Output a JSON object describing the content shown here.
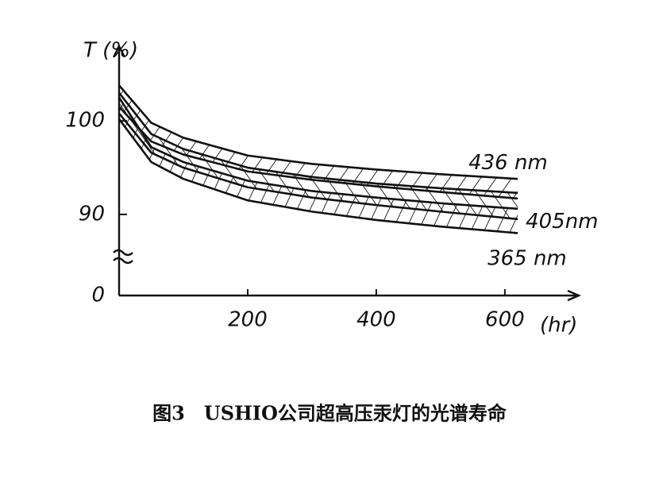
{
  "chart_data": {
    "type": "band",
    "y_label": "T (%)",
    "x_label": "(hr)",
    "caption": "图3　USHIO公司超高压汞灯的光谱寿命",
    "x": [
      0,
      50,
      100,
      200,
      300,
      400,
      500,
      620
    ],
    "xlim": [
      0,
      715
    ],
    "xticks": [
      200,
      400,
      600
    ],
    "ylim": [
      0,
      108
    ],
    "ybreak": [
      0,
      86
    ],
    "yticks": [
      0,
      90,
      100
    ],
    "color": "#111111",
    "series": [
      {
        "name": "436 nm",
        "high": [
          103.8,
          99.8,
          98.2,
          96.3,
          95.4,
          94.8,
          94.3,
          93.8
        ],
        "low": [
          101.5,
          97.8,
          96.4,
          94.6,
          93.7,
          93.0,
          92.4,
          91.7
        ]
      },
      {
        "name": "405nm",
        "high": [
          103.0,
          98.6,
          97.0,
          95.0,
          94.0,
          93.3,
          92.8,
          92.3
        ],
        "low": [
          100.8,
          96.6,
          95.0,
          92.9,
          91.8,
          91.0,
          90.3,
          89.5
        ]
      },
      {
        "name": "365 nm",
        "high": [
          102.5,
          97.2,
          95.6,
          93.6,
          92.5,
          91.8,
          91.2,
          90.6
        ],
        "low": [
          100.2,
          95.6,
          93.8,
          91.5,
          90.3,
          89.4,
          88.7,
          88.0
        ]
      }
    ]
  }
}
